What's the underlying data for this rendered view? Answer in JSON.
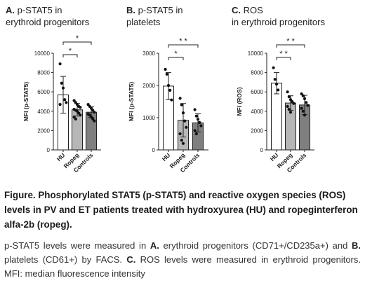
{
  "panels": [
    {
      "letter": "A.",
      "title_rest": "p-STAT5 in",
      "title_line2": "erythroid progenitors"
    },
    {
      "letter": "B.",
      "title_rest": "p-STAT5 in",
      "title_line2": "platelets"
    },
    {
      "letter": "C.",
      "title_rest": "ROS",
      "title_line2": "in erythroid progenitors"
    }
  ],
  "chart_data": [
    {
      "type": "bar",
      "title": "p-STAT5 in erythroid progenitors",
      "ylabel": "MFI (p-STAT5)",
      "ylim": [
        0,
        10000
      ],
      "yticks": [
        "0",
        "2000",
        "4000",
        "6000",
        "8000",
        "10000"
      ],
      "categories": [
        "HU",
        "Ropeg",
        "Controls"
      ],
      "values": [
        5700,
        4150,
        3900
      ],
      "errors": [
        1900,
        650,
        550
      ],
      "colors": [
        "#ffffff",
        "#b7b7b7",
        "#7f7f7f"
      ],
      "points": [
        [
          8900,
          6900,
          6400,
          5200,
          4900,
          4700
        ],
        [
          5100,
          4900,
          4700,
          4500,
          4400,
          4200,
          4100,
          4000,
          3800,
          3600,
          3400,
          3200
        ],
        [
          4700,
          4500,
          4300,
          4100,
          3900,
          3700,
          3600,
          3400,
          3200,
          3000
        ]
      ],
      "significance": [
        {
          "from": 0,
          "to": 1,
          "label": "*"
        },
        {
          "from": 0,
          "to": 2,
          "label": "*"
        }
      ]
    },
    {
      "type": "bar",
      "title": "p-STAT5 in platelets",
      "ylabel": "MFI (p-STAT5)",
      "ylim": [
        0,
        3000
      ],
      "yticks": [
        "0",
        "1000",
        "2000",
        "3000"
      ],
      "categories": [
        "HU",
        "Ropeg",
        "Controls"
      ],
      "values": [
        1980,
        920,
        840
      ],
      "errors": [
        420,
        520,
        280
      ],
      "colors": [
        "#ffffff",
        "#b7b7b7",
        "#7f7f7f"
      ],
      "points": [
        [
          2500,
          2350,
          2000,
          1850,
          1550
        ],
        [
          1600,
          1400,
          1150,
          900,
          700,
          500,
          300,
          200
        ],
        [
          1250,
          1050,
          950,
          850,
          750,
          600,
          500
        ]
      ],
      "significance": [
        {
          "from": 0,
          "to": 1,
          "label": "*"
        },
        {
          "from": 0,
          "to": 2,
          "label": "* *"
        }
      ]
    },
    {
      "type": "bar",
      "title": "ROS in erythroid progenitors",
      "ylabel": "MFI (ROS)",
      "ylim": [
        0,
        10000
      ],
      "yticks": [
        "0",
        "2000",
        "4000",
        "6000",
        "8000",
        "10000"
      ],
      "categories": [
        "HU",
        "Ropeg",
        "Controls"
      ],
      "values": [
        6900,
        4850,
        4650
      ],
      "errors": [
        1100,
        750,
        1000
      ],
      "colors": [
        "#ffffff",
        "#b7b7b7",
        "#7f7f7f"
      ],
      "points": [
        [
          8500,
          7300,
          6800,
          6200
        ],
        [
          6000,
          5500,
          5200,
          5000,
          4800,
          4500,
          4200,
          3900
        ],
        [
          5800,
          5600,
          5300,
          4900,
          4600,
          4300,
          4000,
          3600
        ]
      ],
      "significance": [
        {
          "from": 0,
          "to": 1,
          "label": "* *"
        },
        {
          "from": 0,
          "to": 2,
          "label": "* *"
        }
      ]
    }
  ],
  "caption": {
    "title": "Figure. Phosphorylated STAT5 (p-STAT5) and reactive oxygen species (ROS) levels in PV and ET patients treated with hydroxyurea (HU) and ropeginterferon alfa-2b (ropeg).",
    "body_1": "p-STAT5 levels were measured in ",
    "body_A": "A.",
    "body_2": " erythroid progenitors (CD71+/CD235a+) and ",
    "body_B": "B.",
    "body_3": " platelets (CD61+) by FACS. ",
    "body_C": "C.",
    "body_4": " ROS levels were measured in erythroid progenitors. MFI: median fluorescence intensity"
  }
}
